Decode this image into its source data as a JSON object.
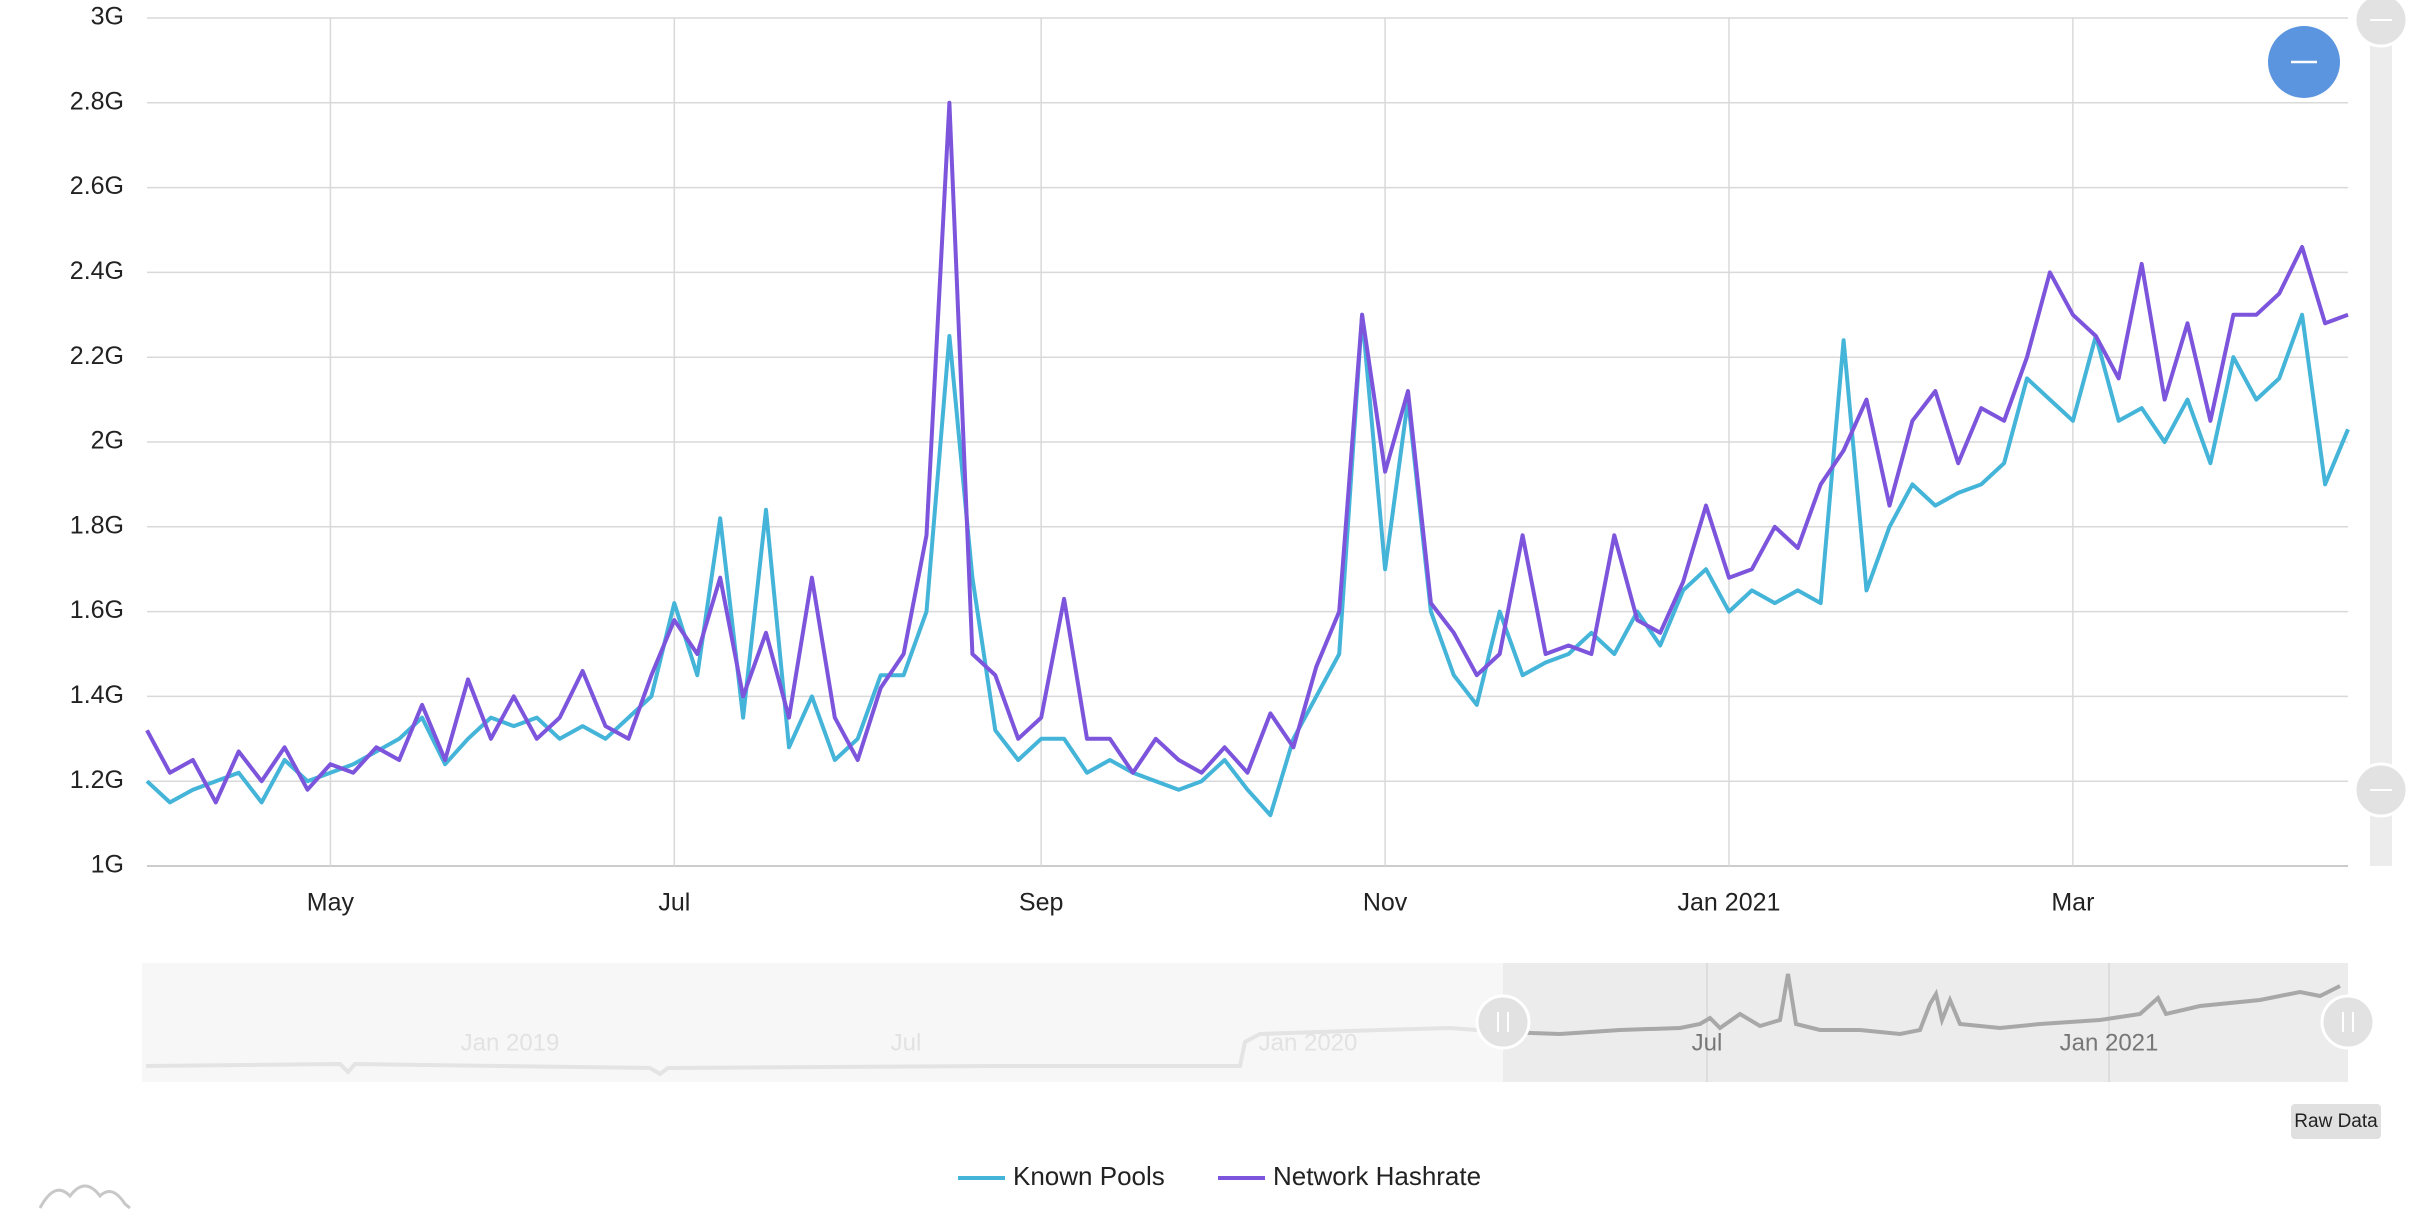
{
  "chart_data": {
    "type": "line",
    "categories": [
      null,
      null,
      null,
      null,
      null,
      null,
      null,
      null,
      "May",
      null,
      null,
      null,
      null,
      null,
      null,
      null,
      null,
      null,
      null,
      null,
      null,
      null,
      null,
      "Jul",
      null,
      null,
      null,
      null,
      null,
      null,
      null,
      null,
      null,
      null,
      null,
      null,
      null,
      null,
      null,
      "Sep",
      null,
      null,
      null,
      null,
      null,
      null,
      null,
      null,
      null,
      null,
      null,
      null,
      null,
      null,
      "Nov",
      null,
      null,
      null,
      null,
      null,
      null,
      null,
      null,
      null,
      null,
      null,
      null,
      null,
      null,
      "Jan 2021",
      null,
      null,
      null,
      null,
      null,
      null,
      null,
      null,
      null,
      null,
      null,
      null,
      null,
      null,
      "Mar",
      null,
      null,
      null,
      null,
      null,
      null,
      null,
      null,
      null,
      null,
      null,
      null
    ],
    "series": [
      {
        "name": "Known Pools",
        "color": "#44b4d9",
        "values": [
          1.2,
          1.15,
          1.18,
          1.2,
          1.22,
          1.15,
          1.25,
          1.2,
          1.22,
          1.24,
          1.27,
          1.3,
          1.35,
          1.24,
          1.3,
          1.35,
          1.33,
          1.35,
          1.3,
          1.33,
          1.3,
          1.35,
          1.4,
          1.62,
          1.45,
          1.82,
          1.35,
          1.84,
          1.28,
          1.4,
          1.25,
          1.3,
          1.45,
          1.45,
          1.6,
          2.25,
          1.68,
          1.32,
          1.25,
          1.3,
          1.3,
          1.22,
          1.25,
          1.22,
          1.2,
          1.18,
          1.2,
          1.25,
          1.18,
          1.12,
          1.3,
          1.4,
          1.5,
          2.3,
          1.7,
          2.1,
          1.6,
          1.45,
          1.38,
          1.6,
          1.45,
          1.48,
          1.5,
          1.55,
          1.5,
          1.6,
          1.52,
          1.65,
          1.7,
          1.6,
          1.65,
          1.62,
          1.65,
          1.62,
          2.24,
          1.65,
          1.8,
          1.9,
          1.85,
          1.88,
          1.9,
          1.95,
          2.15,
          2.1,
          2.05,
          2.25,
          2.05,
          2.08,
          2.0,
          2.1,
          1.95,
          2.2,
          2.1,
          2.15,
          2.3,
          1.9,
          2.03
        ]
      },
      {
        "name": "Network Hashrate",
        "color": "#7d55dc",
        "values": [
          1.32,
          1.22,
          1.25,
          1.15,
          1.27,
          1.2,
          1.28,
          1.18,
          1.24,
          1.22,
          1.28,
          1.25,
          1.38,
          1.25,
          1.44,
          1.3,
          1.4,
          1.3,
          1.35,
          1.46,
          1.33,
          1.3,
          1.45,
          1.58,
          1.5,
          1.68,
          1.4,
          1.55,
          1.35,
          1.68,
          1.35,
          1.25,
          1.42,
          1.5,
          1.78,
          2.8,
          1.5,
          1.45,
          1.3,
          1.35,
          1.63,
          1.3,
          1.3,
          1.22,
          1.3,
          1.25,
          1.22,
          1.28,
          1.22,
          1.36,
          1.28,
          1.47,
          1.6,
          2.3,
          1.93,
          2.12,
          1.62,
          1.55,
          1.45,
          1.5,
          1.78,
          1.5,
          1.52,
          1.5,
          1.78,
          1.58,
          1.55,
          1.67,
          1.85,
          1.68,
          1.7,
          1.8,
          1.75,
          1.9,
          1.98,
          2.1,
          1.85,
          2.05,
          2.12,
          1.95,
          2.08,
          2.05,
          2.2,
          2.4,
          2.3,
          2.25,
          2.15,
          2.42,
          2.1,
          2.28,
          2.05,
          2.3,
          2.3,
          2.35,
          2.46,
          2.28,
          2.3
        ]
      }
    ],
    "ylim": [
      1,
      3
    ],
    "yticks": [
      {
        "value": 1,
        "label": "1G"
      },
      {
        "value": 1.2,
        "label": "1.2G"
      },
      {
        "value": 1.4,
        "label": "1.4G"
      },
      {
        "value": 1.6,
        "label": "1.6G"
      },
      {
        "value": 1.8,
        "label": "1.8G"
      },
      {
        "value": 2,
        "label": "2G"
      },
      {
        "value": 2.2,
        "label": "2.2G"
      },
      {
        "value": 2.4,
        "label": "2.4G"
      },
      {
        "value": 2.6,
        "label": "2.6G"
      },
      {
        "value": 2.8,
        "label": "2.8G"
      },
      {
        "value": 3,
        "label": "3G"
      }
    ],
    "grid": true,
    "legend": "bottom"
  },
  "navigator": {
    "labels": [
      "Jan 2019",
      "Jul",
      "Jan 2020",
      "Jul",
      "Jan 2021"
    ]
  },
  "button": "Raw Data"
}
